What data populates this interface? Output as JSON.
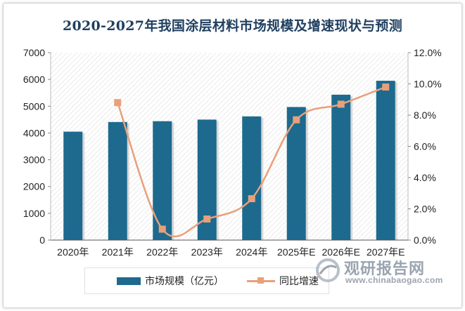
{
  "chart_data": {
    "type": "bar",
    "title": "2020-2027年我国涂层材料市场规模及增速现状与预测",
    "categories": [
      "2020年",
      "2021年",
      "2022年",
      "2023年",
      "2024年",
      "2025年E",
      "2026年E",
      "2027年E"
    ],
    "series": [
      {
        "name": "市场规模（亿元）",
        "type": "bar",
        "axis": "left",
        "color": "#1d6a8e",
        "values": [
          4050,
          4410,
          4440,
          4500,
          4620,
          4970,
          5430,
          5950
        ]
      },
      {
        "name": "同比增速",
        "type": "line",
        "axis": "right",
        "color": "#e8a07a",
        "values": [
          null,
          8.8,
          0.7,
          1.35,
          2.65,
          7.7,
          8.7,
          9.8
        ]
      }
    ],
    "y_left": {
      "min": 0,
      "max": 7000,
      "ticks": [
        0,
        1000,
        2000,
        3000,
        4000,
        5000,
        6000,
        7000
      ]
    },
    "y_right": {
      "min": 0,
      "max": 12,
      "ticks": [
        "0.0%",
        "2.0%",
        "4.0%",
        "6.0%",
        "8.0%",
        "10.0%",
        "12.0%"
      ]
    },
    "legend_position": "bottom",
    "grid": false
  },
  "watermark": {
    "text": "观研报告网",
    "url": "www.chinabaogao.com"
  }
}
